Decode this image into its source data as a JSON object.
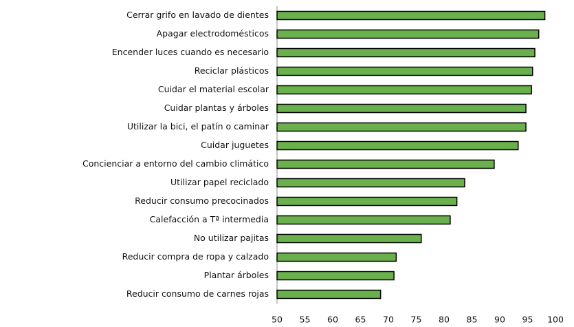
{
  "chart_data": {
    "type": "barh",
    "categories": [
      "Cerrar grifo en lavado de dientes",
      "Apagar electrodomésticos",
      "Encender luces cuando es necesario",
      "Reciclar plásticos",
      "Cuidar el material escolar",
      "Cuidar plantas y árboles",
      "Utilizar la bici, el patín o caminar",
      "Cuidar juguetes",
      "Concienciar a entorno del cambio climático",
      "Utilizar papel reciclado",
      "Reducir consumo precocinados",
      "Calefacción a Tª intermedia",
      "No utilizar pajitas",
      "Reducir compra de ropa y calzado",
      "Plantar árboles",
      "Reducir consumo de carnes rojas"
    ],
    "values": [
      98.1,
      97.0,
      96.3,
      95.9,
      95.7,
      94.7,
      94.7,
      93.3,
      89.0,
      83.7,
      82.3,
      81.1,
      75.9,
      71.4,
      71.0,
      68.6
    ],
    "color": "#6ab04c",
    "xlim": [
      50,
      100
    ],
    "xticks": [
      50,
      55,
      60,
      65,
      70,
      75,
      80,
      85,
      90,
      95,
      100
    ]
  }
}
